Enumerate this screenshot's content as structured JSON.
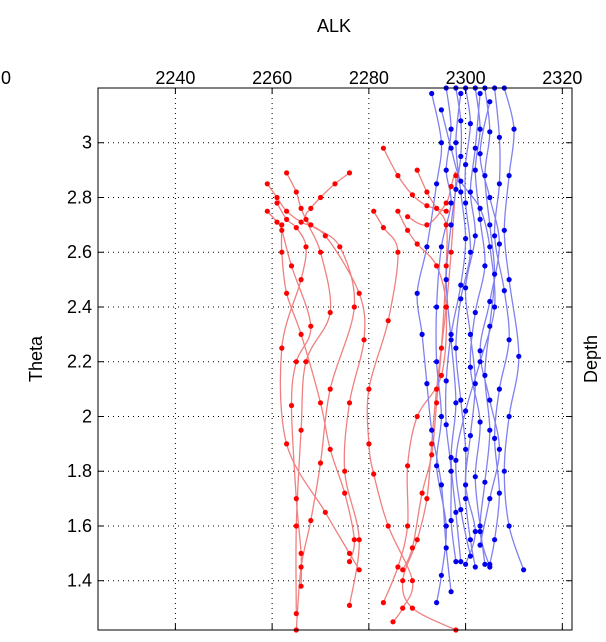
{
  "chart_data": {
    "type": "line",
    "title": "ALK",
    "xlabel": "ALK",
    "ylabel": "Theta",
    "right_label": "Depth",
    "x_ticks": [
      2240,
      2260,
      2280,
      2300,
      2320
    ],
    "x_tick_labels": [
      "2240",
      "2260",
      "2280",
      "2300",
      "2320"
    ],
    "x_edge_label": "0",
    "y_ticks": [
      1.4,
      1.6,
      1.8,
      2,
      2.2,
      2.4,
      2.6,
      2.8,
      3
    ],
    "y_tick_labels": [
      "1.4",
      "1.6",
      "1.8",
      "2",
      "2.2",
      "2.4",
      "2.6",
      "2.8",
      "3"
    ],
    "xlim": [
      2224,
      2322
    ],
    "ylim": [
      1.22,
      3.2
    ],
    "grid": true,
    "colors": {
      "red": "#ff0000",
      "red_line": "#f08080",
      "blue": "#0000ee",
      "blue_line": "#8080f0"
    },
    "series": [
      {
        "color": "red",
        "points": [
          [
            2276,
            2.89
          ],
          [
            2273,
            2.85
          ],
          [
            2270,
            2.8
          ],
          [
            2268,
            2.76
          ],
          [
            2267,
            2.72
          ],
          [
            2270,
            2.6
          ],
          [
            2272,
            2.38
          ],
          [
            2267,
            2.2
          ],
          [
            2266,
            1.95
          ],
          [
            2265,
            1.6
          ],
          [
            2265,
            1.28
          ]
        ]
      },
      {
        "color": "red",
        "points": [
          [
            2263,
            2.89
          ],
          [
            2265,
            2.82
          ],
          [
            2266,
            2.76
          ],
          [
            2268,
            2.7
          ],
          [
            2274,
            2.62
          ],
          [
            2277,
            2.4
          ],
          [
            2272,
            2.1
          ],
          [
            2270,
            1.83
          ],
          [
            2268,
            1.62
          ],
          [
            2266,
            1.45
          ],
          [
            2265,
            1.22
          ]
        ]
      },
      {
        "color": "red",
        "points": [
          [
            2259,
            2.85
          ],
          [
            2261,
            2.8
          ],
          [
            2263,
            2.75
          ],
          [
            2266,
            2.71
          ],
          [
            2271,
            2.66
          ],
          [
            2278,
            2.45
          ],
          [
            2279,
            2.28
          ],
          [
            2276,
            2.05
          ],
          [
            2275,
            1.8
          ],
          [
            2278,
            1.55
          ],
          [
            2276,
            1.31
          ]
        ]
      },
      {
        "color": "red",
        "points": [
          [
            2259,
            2.75
          ],
          [
            2261,
            2.71
          ],
          [
            2262,
            2.68
          ],
          [
            2264,
            2.55
          ],
          [
            2268,
            2.33
          ],
          [
            2265,
            2.2
          ],
          [
            2264,
            2.04
          ],
          [
            2265,
            1.7
          ],
          [
            2266,
            1.5
          ],
          [
            2266,
            1.38
          ]
        ]
      },
      {
        "color": "red",
        "points": [
          [
            2261,
            2.78
          ],
          [
            2263,
            2.72
          ],
          [
            2265,
            2.69
          ],
          [
            2267,
            2.62
          ],
          [
            2266,
            2.5
          ],
          [
            2262,
            2.25
          ],
          [
            2263,
            1.9
          ],
          [
            2271,
            1.65
          ],
          [
            2276,
            1.5
          ],
          [
            2278,
            1.44
          ]
        ]
      },
      {
        "color": "red",
        "points": [
          [
            2262,
            2.7
          ],
          [
            2262,
            2.6
          ],
          [
            2263,
            2.45
          ],
          [
            2266,
            2.3
          ],
          [
            2270,
            2.05
          ],
          [
            2272,
            1.88
          ],
          [
            2275,
            1.72
          ],
          [
            2277,
            1.55
          ],
          [
            2276,
            1.47
          ]
        ]
      },
      {
        "color": "red",
        "points": [
          [
            2283,
            2.98
          ],
          [
            2286,
            2.88
          ],
          [
            2289,
            2.81
          ],
          [
            2292,
            2.77
          ],
          [
            2296,
            2.75
          ]
        ]
      },
      {
        "color": "red",
        "points": [
          [
            2281,
            2.75
          ],
          [
            2283,
            2.69
          ],
          [
            2286,
            2.6
          ],
          [
            2284,
            2.35
          ],
          [
            2280,
            2.1
          ],
          [
            2280,
            1.9
          ],
          [
            2281,
            1.79
          ],
          [
            2284,
            1.6
          ],
          [
            2289,
            1.4
          ],
          [
            2287,
            1.3
          ],
          [
            2285,
            1.25
          ]
        ]
      },
      {
        "color": "red",
        "points": [
          [
            2286,
            2.75
          ],
          [
            2288,
            2.68
          ],
          [
            2290,
            2.63
          ],
          [
            2294,
            2.55
          ],
          [
            2296,
            2.4
          ],
          [
            2295,
            2.15
          ],
          [
            2290,
            2.0
          ],
          [
            2288,
            1.82
          ],
          [
            2288,
            1.6
          ],
          [
            2286,
            1.45
          ],
          [
            2283,
            1.32
          ]
        ]
      },
      {
        "color": "red",
        "points": [
          [
            2288,
            2.73
          ],
          [
            2292,
            2.7
          ],
          [
            2296,
            2.78
          ],
          [
            2297,
            2.84
          ],
          [
            2298,
            2.88
          ],
          [
            2297,
            2.6
          ],
          [
            2296,
            2.4
          ],
          [
            2294,
            2.1
          ],
          [
            2293,
            1.9
          ],
          [
            2292,
            1.7
          ],
          [
            2290,
            1.55
          ],
          [
            2287,
            1.4
          ],
          [
            2289,
            1.3
          ],
          [
            2298,
            1.22
          ]
        ]
      },
      {
        "color": "red",
        "points": [
          [
            2290,
            2.9
          ],
          [
            2292,
            2.82
          ],
          [
            2294,
            2.76
          ],
          [
            2296,
            2.7
          ],
          [
            2296,
            2.55
          ],
          [
            2295,
            2.25
          ],
          [
            2294,
            2.05
          ],
          [
            2293,
            1.86
          ],
          [
            2291,
            1.72
          ],
          [
            2289,
            1.52
          ],
          [
            2287,
            1.44
          ]
        ]
      },
      {
        "color": "blue",
        "points": [
          [
            2296,
            3.2
          ],
          [
            2297,
            3.05
          ],
          [
            2296,
            2.9
          ],
          [
            2297,
            2.78
          ],
          [
            2295,
            2.62
          ],
          [
            2294,
            2.4
          ],
          [
            2294,
            2.2
          ],
          [
            2295,
            2.0
          ],
          [
            2294,
            1.82
          ],
          [
            2296,
            1.6
          ],
          [
            2295,
            1.42
          ],
          [
            2294,
            1.32
          ]
        ]
      },
      {
        "color": "blue",
        "points": [
          [
            2298,
            3.2
          ],
          [
            2299,
            3.08
          ],
          [
            2299,
            2.95
          ],
          [
            2298,
            2.83
          ],
          [
            2297,
            2.7
          ],
          [
            2296,
            2.5
          ],
          [
            2297,
            2.28
          ],
          [
            2298,
            2.05
          ],
          [
            2297,
            1.85
          ],
          [
            2298,
            1.65
          ],
          [
            2299,
            1.47
          ]
        ]
      },
      {
        "color": "blue",
        "points": [
          [
            2300,
            3.2
          ],
          [
            2301,
            3.07
          ],
          [
            2300,
            2.92
          ],
          [
            2300,
            2.78
          ],
          [
            2301,
            2.6
          ],
          [
            2299,
            2.43
          ],
          [
            2298,
            2.25
          ],
          [
            2299,
            2.06
          ],
          [
            2300,
            1.88
          ],
          [
            2300,
            1.7
          ],
          [
            2301,
            1.55
          ],
          [
            2302,
            1.45
          ]
        ]
      },
      {
        "color": "blue",
        "points": [
          [
            2302,
            3.2
          ],
          [
            2303,
            3.05
          ],
          [
            2302,
            2.9
          ],
          [
            2303,
            2.72
          ],
          [
            2304,
            2.55
          ],
          [
            2302,
            2.38
          ],
          [
            2301,
            2.18
          ],
          [
            2303,
            1.98
          ],
          [
            2302,
            1.78
          ],
          [
            2303,
            1.6
          ],
          [
            2304,
            1.46
          ]
        ]
      },
      {
        "color": "blue",
        "points": [
          [
            2304,
            3.2
          ],
          [
            2305,
            3.04
          ],
          [
            2304,
            2.88
          ],
          [
            2305,
            2.7
          ],
          [
            2306,
            2.52
          ],
          [
            2305,
            2.33
          ],
          [
            2304,
            2.15
          ],
          [
            2305,
            1.95
          ],
          [
            2304,
            1.76
          ],
          [
            2303,
            1.58
          ],
          [
            2305,
            1.45
          ]
        ]
      },
      {
        "color": "blue",
        "points": [
          [
            2306,
            3.2
          ],
          [
            2307,
            3.02
          ],
          [
            2307,
            2.85
          ],
          [
            2306,
            2.66
          ],
          [
            2308,
            2.46
          ],
          [
            2309,
            2.28
          ],
          [
            2307,
            2.1
          ],
          [
            2306,
            1.92
          ],
          [
            2307,
            1.72
          ],
          [
            2306,
            1.55
          ],
          [
            2305,
            1.46
          ]
        ]
      },
      {
        "color": "blue",
        "points": [
          [
            2308,
            3.2
          ],
          [
            2310,
            3.05
          ],
          [
            2309,
            2.88
          ],
          [
            2308,
            2.68
          ],
          [
            2309,
            2.5
          ],
          [
            2311,
            2.22
          ],
          [
            2309,
            2.0
          ],
          [
            2308,
            1.8
          ],
          [
            2309,
            1.6
          ],
          [
            2312,
            1.44
          ]
        ]
      },
      {
        "color": "blue",
        "points": [
          [
            2293,
            3.18
          ],
          [
            2295,
            3.0
          ],
          [
            2294,
            2.85
          ],
          [
            2292,
            2.62
          ],
          [
            2290,
            2.45
          ],
          [
            2291,
            2.3
          ],
          [
            2292,
            2.12
          ],
          [
            2293,
            1.95
          ],
          [
            2295,
            1.75
          ],
          [
            2296,
            1.52
          ],
          [
            2297,
            1.36
          ]
        ]
      },
      {
        "color": "blue",
        "points": [
          [
            2299,
            3.18
          ],
          [
            2298,
            3.0
          ],
          [
            2299,
            2.82
          ],
          [
            2300,
            2.65
          ],
          [
            2299,
            2.48
          ],
          [
            2297,
            2.3
          ],
          [
            2296,
            2.13
          ],
          [
            2296,
            1.97
          ],
          [
            2297,
            1.8
          ],
          [
            2297,
            1.62
          ],
          [
            2298,
            1.47
          ]
        ]
      },
      {
        "color": "blue",
        "points": [
          [
            2303,
            3.18
          ],
          [
            2302,
            2.98
          ],
          [
            2301,
            2.82
          ],
          [
            2302,
            2.66
          ],
          [
            2300,
            2.47
          ],
          [
            2301,
            2.3
          ],
          [
            2302,
            2.12
          ],
          [
            2301,
            1.93
          ],
          [
            2300,
            1.75
          ],
          [
            2302,
            1.58
          ],
          [
            2300,
            1.46
          ]
        ]
      },
      {
        "color": "blue",
        "points": [
          [
            2295,
            3.12
          ],
          [
            2297,
            2.98
          ],
          [
            2299,
            2.86
          ],
          [
            2303,
            2.76
          ],
          [
            2305,
            2.62
          ],
          [
            2306,
            2.4
          ],
          [
            2303,
            2.2
          ],
          [
            2300,
            2.02
          ],
          [
            2298,
            1.84
          ],
          [
            2299,
            1.66
          ],
          [
            2301,
            1.49
          ]
        ]
      },
      {
        "color": "blue",
        "points": [
          [
            2305,
            3.15
          ],
          [
            2303,
            2.96
          ],
          [
            2305,
            2.8
          ],
          [
            2307,
            2.63
          ],
          [
            2305,
            2.42
          ],
          [
            2303,
            2.24
          ],
          [
            2305,
            2.06
          ],
          [
            2307,
            1.88
          ],
          [
            2305,
            1.7
          ],
          [
            2303,
            1.53
          ]
        ]
      }
    ]
  }
}
